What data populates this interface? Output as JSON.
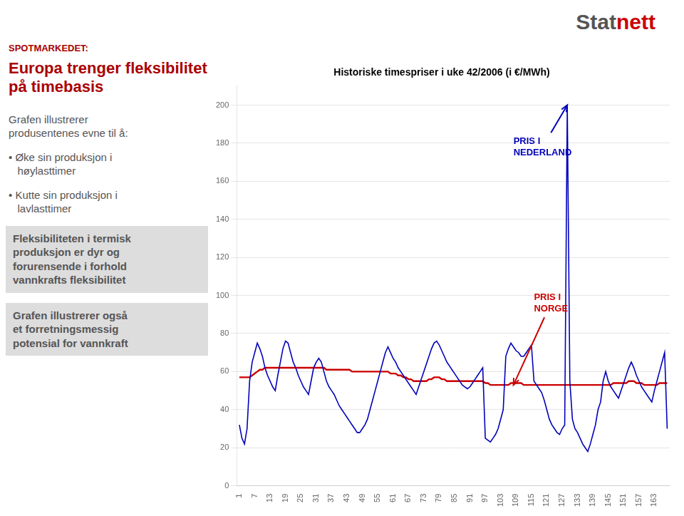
{
  "chart_data": {
    "type": "line",
    "title": "Historiske timespriser i uke 42/2006 (i €/MWh)",
    "x": [
      1,
      2,
      3,
      4,
      5,
      6,
      7,
      8,
      9,
      10,
      11,
      12,
      13,
      14,
      15,
      16,
      17,
      18,
      19,
      20,
      21,
      22,
      23,
      24,
      25,
      26,
      27,
      28,
      29,
      30,
      31,
      32,
      33,
      34,
      35,
      36,
      37,
      38,
      39,
      40,
      41,
      42,
      43,
      44,
      45,
      46,
      47,
      48,
      49,
      50,
      51,
      52,
      53,
      54,
      55,
      56,
      57,
      58,
      59,
      60,
      61,
      62,
      63,
      64,
      65,
      66,
      67,
      68,
      69,
      70,
      71,
      72,
      73,
      74,
      75,
      76,
      77,
      78,
      79,
      80,
      81,
      82,
      83,
      84,
      85,
      86,
      87,
      88,
      89,
      90,
      91,
      92,
      93,
      94,
      95,
      96,
      97,
      98,
      99,
      100,
      101,
      102,
      103,
      104,
      105,
      106,
      107,
      108,
      109,
      110,
      111,
      112,
      113,
      114,
      115,
      116,
      117,
      118,
      119,
      120,
      121,
      122,
      123,
      124,
      125,
      126,
      127,
      128,
      129,
      130,
      131,
      132,
      133,
      134,
      135,
      136,
      137,
      138,
      139,
      140,
      141,
      142,
      143,
      144,
      145,
      146,
      147,
      148,
      149,
      150,
      151,
      152,
      153,
      154,
      155,
      156,
      157,
      158,
      159,
      160,
      161,
      162,
      163,
      164,
      165,
      166,
      167,
      168
    ],
    "series": [
      {
        "color": "#0000bb",
        "values": [
          32,
          25,
          22,
          30,
          55,
          65,
          70,
          75,
          72,
          68,
          62,
          58,
          55,
          52,
          50,
          58,
          65,
          72,
          76,
          75,
          70,
          65,
          62,
          58,
          55,
          52,
          50,
          48,
          55,
          62,
          65,
          67,
          65,
          60,
          55,
          52,
          50,
          48,
          45,
          42,
          40,
          38,
          36,
          34,
          32,
          30,
          28,
          28,
          30,
          32,
          35,
          40,
          45,
          50,
          55,
          60,
          65,
          70,
          73,
          70,
          67,
          65,
          62,
          60,
          58,
          56,
          54,
          52,
          50,
          48,
          52,
          56,
          60,
          64,
          68,
          72,
          75,
          76,
          74,
          71,
          68,
          65,
          63,
          61,
          59,
          57,
          55,
          53,
          52,
          51,
          52,
          54,
          56,
          58,
          60,
          62,
          25,
          24,
          23,
          25,
          27,
          30,
          35,
          40,
          68,
          72,
          75,
          73,
          71,
          70,
          68,
          68,
          70,
          72,
          74,
          55,
          53,
          51,
          49,
          45,
          40,
          35,
          32,
          30,
          28,
          27,
          30,
          32,
          200,
          55,
          35,
          30,
          28,
          25,
          22,
          20,
          18,
          22,
          27,
          32,
          40,
          44,
          55,
          60,
          55,
          52,
          50,
          48,
          46,
          50,
          54,
          58,
          62,
          65,
          62,
          58,
          55,
          52,
          50,
          48,
          46,
          44,
          50,
          55,
          60,
          65,
          70,
          30
        ]
      },
      {
        "color": "#cc0000",
        "values": [
          57,
          57,
          57,
          57,
          57,
          58,
          59,
          60,
          61,
          61,
          62,
          62,
          62,
          62,
          62,
          62,
          62,
          62,
          62,
          62,
          62,
          62,
          62,
          62,
          62,
          62,
          62,
          62,
          62,
          62,
          62,
          62,
          62,
          62,
          61,
          61,
          61,
          61,
          61,
          61,
          61,
          61,
          61,
          61,
          60,
          60,
          60,
          60,
          60,
          60,
          60,
          60,
          60,
          60,
          60,
          60,
          60,
          60,
          60,
          59,
          59,
          59,
          58,
          58,
          57,
          57,
          56,
          56,
          55,
          55,
          55,
          55,
          55,
          55,
          56,
          56,
          57,
          57,
          57,
          56,
          56,
          55,
          55,
          55,
          55,
          55,
          55,
          55,
          55,
          55,
          55,
          55,
          55,
          55,
          55,
          55,
          54,
          54,
          53,
          53,
          53,
          53,
          53,
          53,
          53,
          53,
          54,
          54,
          54,
          54,
          54,
          53,
          53,
          53,
          53,
          53,
          53,
          53,
          53,
          53,
          53,
          53,
          53,
          53,
          53,
          53,
          53,
          53,
          53,
          53,
          53,
          53,
          53,
          53,
          53,
          53,
          53,
          53,
          53,
          53,
          53,
          53,
          53,
          53,
          53,
          53,
          54,
          54,
          54,
          54,
          54,
          54,
          55,
          55,
          55,
          54,
          54,
          54,
          53,
          53,
          53,
          53,
          53,
          53,
          54,
          54,
          54,
          54
        ]
      }
    ],
    "xlim": [
      0,
      169
    ],
    "xticks": [
      1,
      7,
      13,
      19,
      25,
      31,
      37,
      43,
      49,
      55,
      61,
      67,
      73,
      79,
      85,
      91,
      97,
      103,
      109,
      115,
      121,
      127,
      133,
      139,
      145,
      151,
      157,
      163
    ],
    "ylim": [
      0,
      210
    ],
    "yticks": [
      0,
      20,
      40,
      60,
      80,
      100,
      120,
      140,
      160,
      180,
      200
    ],
    "grid": "y",
    "annotations": [
      {
        "text": "PRIS I\nNEDERLAND",
        "color": "#0000bb",
        "x": 129,
        "y": 200,
        "text_x": 108,
        "text_y": 178
      },
      {
        "text": "PRIS I\nNORGE",
        "color": "#cc0000",
        "x": 108,
        "y": 53,
        "text_x": 116,
        "text_y": 96
      }
    ],
    "panel": [
      {
        "text": "SPOTMARKEDET:",
        "color": "#aa0000",
        "bold": true
      },
      {
        "text": "Europa trenger fleksibilitet på timebasis",
        "color": "#aa0000",
        "bold": true
      },
      {
        "text": "Grafen illustrerer\nprodusentenes evne til å:",
        "color": "#555555",
        "bold": false
      },
      {
        "text": "• Øke sin produksjon i\n   høylasttimer",
        "color": "#555555",
        "bold": false
      },
      {
        "text": "• Kutte sin produksjon i\n   lavlasttimer",
        "color": "#555555",
        "bold": false
      },
      {
        "text": "Fleksibiliteten i termisk\nproduksjon er dyr og\nforurensende i forhold\nvannkrafts fleksibilitet",
        "color": "#555555",
        "bold": true,
        "background": "#dddddd"
      },
      {
        "text": "Grafen illustrerer også\net forretningsmessig\npotensial for vannkraft",
        "color": "#555555",
        "bold": true,
        "background": "#dddddd"
      }
    ],
    "logo": [
      {
        "text": "Stat",
        "color": "#555555"
      },
      {
        "text": "nett",
        "color": "#cc0000"
      }
    ]
  }
}
